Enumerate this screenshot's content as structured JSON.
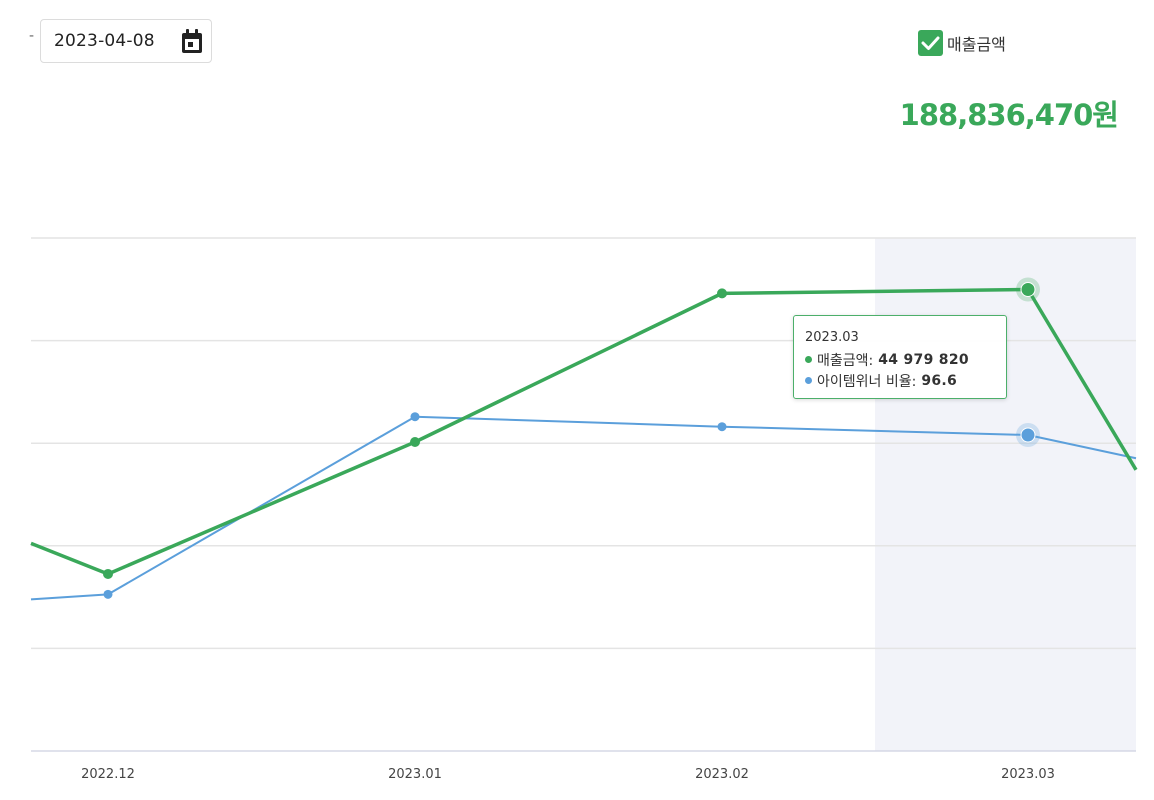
{
  "date_picker": {
    "prefix": "-",
    "value": "2023-04-08"
  },
  "legend": {
    "label": "매출금액",
    "checked": true
  },
  "total": "188,836,470원",
  "tooltip": {
    "title": "2023.03",
    "rows": [
      {
        "label": "매출금액:",
        "value": "44 979 820",
        "color": "#3aa85a"
      },
      {
        "label": "아이템위너 비율:",
        "value": "96.6",
        "color": "#5b9fdb"
      }
    ]
  },
  "colors": {
    "sales": "#3aa85a",
    "ratio": "#5b9fdb",
    "highlight_band": "#f2f3f9",
    "grid": "#e4e4e4",
    "accent": "#3aa85a"
  },
  "chart_data": {
    "type": "line",
    "categories": [
      "2022.12",
      "2023.01",
      "2023.02",
      "2023.03"
    ],
    "highlighted_category": "2023.03",
    "series": [
      {
        "name": "매출금액",
        "color": "#3aa85a",
        "values": [
          24500000,
          34000000,
          44700000,
          44979820
        ],
        "visible_tail_out": 32000000,
        "visible_tail_in": 26700000
      },
      {
        "name": "아이템위너 비율",
        "color": "#5b9fdb",
        "values": [
          87.0,
          97.7,
          97.1,
          96.6
        ],
        "visible_tail_out": 95.2,
        "visible_tail_in": 86.7
      }
    ],
    "grid": true
  }
}
